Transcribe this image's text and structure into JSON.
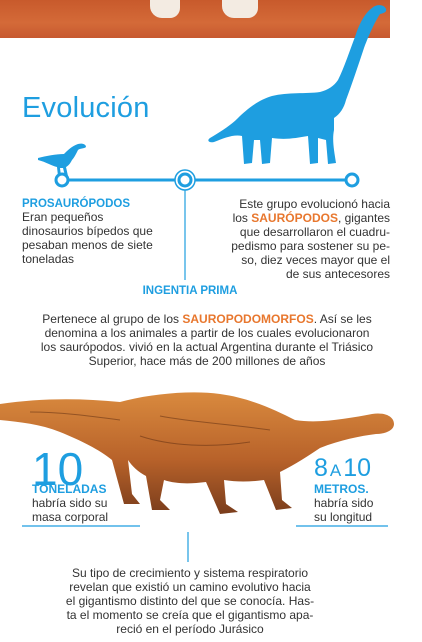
{
  "title": "Evolución",
  "prosaur": {
    "heading": "PROSAURÓPODOS",
    "text": [
      "Eran pequeños",
      "dinosaurios bípedos que",
      "pesaban menos de siete",
      "toneladas"
    ]
  },
  "ingentia": {
    "label": "INGENTIA PRIMA"
  },
  "saur": {
    "line1": "Este grupo evolucionó hacia",
    "line2_pre": "los ",
    "line2_highlight": "SAURÓPODOS",
    "line2_post": ", gigantes",
    "rest": [
      "que desarrollaron el cuadru-",
      "pedismo para sostener su pe-",
      "so, diez veces mayor que el",
      "de sus antecesores"
    ]
  },
  "pertenece": {
    "line1_pre": "Pertenece al grupo de los ",
    "line1_highlight": "SAUROPODOMORFOS",
    "line1_post": ". Así se les",
    "rest": [
      "denomina a los animales a partir de los cuales evolucionaron",
      "los saurópodos. vivió en la actual Argentina durante el Triásico",
      "Superior, hace más de 200 millones de años"
    ]
  },
  "weight": {
    "number": "10",
    "unit": "TONELADAS",
    "text": [
      "habría sido su",
      "masa corporal"
    ]
  },
  "length": {
    "number_a": "8",
    "connector": "A",
    "number_b": "10",
    "unit": "METROS.",
    "text": [
      "habría sido",
      "su longitud"
    ]
  },
  "conclusion": [
    "Su tipo de crecimiento y sistema respiratorio",
    "revelan que existió un camino evolutivo hacia",
    "el gigantismo distinto del que se conocía. Has-",
    "ta el momento se creía que el gigantismo apa-",
    "reció en el período Jurásico"
  ],
  "colors": {
    "accent": "#1e9ee0",
    "highlight": "#e8772e",
    "text": "#333333"
  }
}
